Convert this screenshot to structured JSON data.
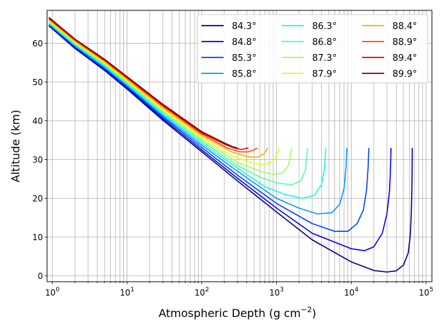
{
  "chart_data": {
    "type": "line",
    "title": "",
    "xlabel": "Atmospheric Depth (g cm",
    "xlabel_exp": "−2",
    "xlabel_close": ")",
    "ylabel": "Altitude (km)",
    "xscale": "log",
    "xlim": [
      0.85,
      120000
    ],
    "ylim": [
      -1.5,
      68.5
    ],
    "grid": true,
    "x_ticks": [
      {
        "base": "10",
        "exp": "0",
        "value": 1
      },
      {
        "base": "10",
        "exp": "1",
        "value": 10
      },
      {
        "base": "10",
        "exp": "2",
        "value": 100
      },
      {
        "base": "10",
        "exp": "3",
        "value": 1000
      },
      {
        "base": "10",
        "exp": "4",
        "value": 10000
      },
      {
        "base": "10",
        "exp": "5",
        "value": 100000
      }
    ],
    "y_ticks": [
      "0",
      "10",
      "20",
      "30",
      "40",
      "50",
      "60"
    ],
    "legend_position": "top-right",
    "legend_columns": 3,
    "series": [
      {
        "name": "84.3°",
        "color": "#00007f",
        "points": [
          [
            0.9,
            64.5
          ],
          [
            2,
            58.7
          ],
          [
            5,
            53.0
          ],
          [
            10,
            48.2
          ],
          [
            30,
            40.2
          ],
          [
            100,
            32.0
          ],
          [
            300,
            24.5
          ],
          [
            1000,
            16.5
          ],
          [
            3000,
            9.3
          ],
          [
            10000,
            3.6
          ],
          [
            20000,
            1.4
          ],
          [
            30000,
            1.0
          ],
          [
            40000,
            1.3
          ],
          [
            50000,
            2.8
          ],
          [
            58000,
            6.0
          ],
          [
            62000,
            11.0
          ],
          [
            64000,
            18.0
          ],
          [
            65000,
            25.0
          ],
          [
            65500,
            33.0
          ]
        ]
      },
      {
        "name": "84.8°",
        "color": "#0000e6",
        "points": [
          [
            0.9,
            64.6
          ],
          [
            2,
            58.9
          ],
          [
            5,
            53.2
          ],
          [
            10,
            48.5
          ],
          [
            30,
            40.6
          ],
          [
            100,
            32.5
          ],
          [
            300,
            25.2
          ],
          [
            1000,
            17.5
          ],
          [
            3000,
            11.0
          ],
          [
            10000,
            7.0
          ],
          [
            15000,
            6.5
          ],
          [
            20000,
            7.5
          ],
          [
            26000,
            11.0
          ],
          [
            30000,
            16.0
          ],
          [
            32500,
            22.0
          ],
          [
            33500,
            28.0
          ],
          [
            34000,
            33.0
          ]
        ]
      },
      {
        "name": "85.3°",
        "color": "#0040ff",
        "points": [
          [
            0.9,
            64.8
          ],
          [
            2,
            59.1
          ],
          [
            5,
            53.5
          ],
          [
            10,
            48.8
          ],
          [
            30,
            41.0
          ],
          [
            100,
            33.1
          ],
          [
            300,
            26.0
          ],
          [
            1000,
            18.7
          ],
          [
            3000,
            13.5
          ],
          [
            6000,
            11.5
          ],
          [
            9000,
            11.5
          ],
          [
            12000,
            13.5
          ],
          [
            14500,
            17.0
          ],
          [
            16000,
            22.0
          ],
          [
            16800,
            28.0
          ],
          [
            17200,
            33.0
          ]
        ]
      },
      {
        "name": "85.8°",
        "color": "#0099ff",
        "points": [
          [
            0.9,
            65.0
          ],
          [
            2,
            59.4
          ],
          [
            5,
            53.8
          ],
          [
            10,
            49.1
          ],
          [
            30,
            41.4
          ],
          [
            100,
            33.7
          ],
          [
            300,
            27.0
          ],
          [
            1000,
            20.0
          ],
          [
            2000,
            17.5
          ],
          [
            3500,
            16.0
          ],
          [
            5500,
            16.3
          ],
          [
            7000,
            18.5
          ],
          [
            8000,
            22.5
          ],
          [
            8500,
            28.0
          ],
          [
            8700,
            33.0
          ]
        ]
      },
      {
        "name": "86.3°",
        "color": "#11f8e4",
        "points": [
          [
            0.9,
            65.2
          ],
          [
            2,
            59.6
          ],
          [
            5,
            54.1
          ],
          [
            10,
            49.4
          ],
          [
            30,
            41.8
          ],
          [
            100,
            34.2
          ],
          [
            300,
            27.8
          ],
          [
            700,
            23.0
          ],
          [
            1300,
            21.0
          ],
          [
            2200,
            20.0
          ],
          [
            3200,
            20.8
          ],
          [
            4000,
            23.5
          ],
          [
            4400,
            28.0
          ],
          [
            4550,
            33.0
          ]
        ]
      },
      {
        "name": "86.8°",
        "color": "#55ff9f",
        "points": [
          [
            0.9,
            65.4
          ],
          [
            2,
            59.8
          ],
          [
            5,
            54.4
          ],
          [
            10,
            49.7
          ],
          [
            30,
            42.2
          ],
          [
            100,
            34.7
          ],
          [
            300,
            28.5
          ],
          [
            600,
            25.5
          ],
          [
            1000,
            24.0
          ],
          [
            1600,
            23.5
          ],
          [
            2100,
            24.5
          ],
          [
            2450,
            27.5
          ],
          [
            2600,
            33.0
          ]
        ]
      },
      {
        "name": "87.3°",
        "color": "#9eff59",
        "points": [
          [
            0.9,
            65.6
          ],
          [
            2,
            60.1
          ],
          [
            5,
            54.7
          ],
          [
            10,
            50.0
          ],
          [
            30,
            42.6
          ],
          [
            100,
            35.2
          ],
          [
            300,
            29.3
          ],
          [
            600,
            27.0
          ],
          [
            900,
            26.2
          ],
          [
            1200,
            26.5
          ],
          [
            1450,
            28.5
          ],
          [
            1600,
            33.0
          ]
        ]
      },
      {
        "name": "87.9°",
        "color": "#e6ff11",
        "points": [
          [
            0.9,
            65.9
          ],
          [
            2,
            60.4
          ],
          [
            5,
            55.0
          ],
          [
            10,
            50.4
          ],
          [
            30,
            43.1
          ],
          [
            100,
            35.7
          ],
          [
            250,
            31.0
          ],
          [
            500,
            29.0
          ],
          [
            700,
            28.7
          ],
          [
            900,
            29.5
          ],
          [
            1020,
            31.5
          ],
          [
            1080,
            33.0
          ]
        ]
      },
      {
        "name": "88.4°",
        "color": "#ffaa00",
        "points": [
          [
            0.9,
            66.1
          ],
          [
            2,
            60.6
          ],
          [
            5,
            55.3
          ],
          [
            10,
            50.7
          ],
          [
            30,
            43.4
          ],
          [
            100,
            36.2
          ],
          [
            250,
            32.0
          ],
          [
            400,
            30.8
          ],
          [
            550,
            30.6
          ],
          [
            680,
            31.5
          ],
          [
            760,
            33.0
          ]
        ]
      },
      {
        "name": "88.9°",
        "color": "#ff4a00",
        "points": [
          [
            0.9,
            66.3
          ],
          [
            2,
            60.8
          ],
          [
            5,
            55.5
          ],
          [
            10,
            51.0
          ],
          [
            30,
            43.8
          ],
          [
            100,
            36.6
          ],
          [
            220,
            33.0
          ],
          [
            320,
            32.0
          ],
          [
            420,
            32.0
          ],
          [
            500,
            32.5
          ],
          [
            550,
            33.0
          ]
        ]
      },
      {
        "name": "89.4°",
        "color": "#e60000",
        "points": [
          [
            0.9,
            66.5
          ],
          [
            2,
            61.0
          ],
          [
            5,
            55.7
          ],
          [
            10,
            51.2
          ],
          [
            30,
            44.0
          ],
          [
            100,
            36.9
          ],
          [
            200,
            34.0
          ],
          [
            270,
            33.0
          ],
          [
            340,
            32.6
          ],
          [
            390,
            32.9
          ],
          [
            420,
            33.0
          ]
        ]
      },
      {
        "name": "89.9°",
        "color": "#7f0000",
        "points": [
          [
            0.9,
            66.7
          ],
          [
            2,
            61.1
          ],
          [
            5,
            55.9
          ],
          [
            10,
            51.4
          ],
          [
            30,
            44.3
          ],
          [
            100,
            37.2
          ],
          [
            200,
            34.3
          ],
          [
            260,
            33.3
          ],
          [
            300,
            33.0
          ]
        ]
      }
    ]
  }
}
